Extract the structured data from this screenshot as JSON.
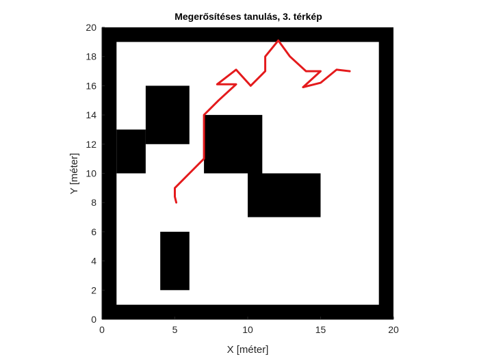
{
  "chart_data": {
    "type": "line",
    "title": "Megerősítéses tanulás, 3. térkép",
    "xlabel": "X [méter]",
    "ylabel": "Y [méter]",
    "xlim": [
      0,
      20
    ],
    "ylim": [
      0,
      20
    ],
    "xticks": [
      "0",
      "5",
      "10",
      "15",
      "20"
    ],
    "yticks": [
      "0",
      "2",
      "4",
      "6",
      "8",
      "10",
      "12",
      "14",
      "16",
      "18",
      "20"
    ],
    "grid": false,
    "colors": {
      "obstacle": "#000000",
      "free": "#ffffff",
      "path": "#e41a1c"
    },
    "obstacles": [
      {
        "x": [
          0,
          20
        ],
        "y": [
          0,
          1
        ]
      },
      {
        "x": [
          0,
          20
        ],
        "y": [
          19,
          20
        ]
      },
      {
        "x": [
          0,
          1
        ],
        "y": [
          0,
          20
        ]
      },
      {
        "x": [
          19,
          20
        ],
        "y": [
          0,
          20
        ]
      },
      {
        "x": [
          1,
          3
        ],
        "y": [
          10,
          13
        ]
      },
      {
        "x": [
          3,
          6
        ],
        "y": [
          12,
          16
        ]
      },
      {
        "x": [
          7,
          11
        ],
        "y": [
          10,
          14
        ]
      },
      {
        "x": [
          10,
          15
        ],
        "y": [
          7,
          10
        ]
      },
      {
        "x": [
          4,
          6
        ],
        "y": [
          2,
          6
        ]
      }
    ],
    "series": [
      {
        "points": [
          [
            5.1,
            8.0
          ],
          [
            5.0,
            8.4
          ],
          [
            5.0,
            9.0
          ],
          [
            6.0,
            10.0
          ],
          [
            7.0,
            11.0
          ],
          [
            7.0,
            14.0
          ],
          [
            8.0,
            15.0
          ],
          [
            9.2,
            16.1
          ],
          [
            7.9,
            16.1
          ],
          [
            9.2,
            17.1
          ],
          [
            10.2,
            16.0
          ],
          [
            11.2,
            17.0
          ],
          [
            11.2,
            18.0
          ],
          [
            12.1,
            19.1
          ],
          [
            12.9,
            18.0
          ],
          [
            14.0,
            17.0
          ],
          [
            15.0,
            17.0
          ],
          [
            13.8,
            15.9
          ],
          [
            15.0,
            16.2
          ],
          [
            16.1,
            17.1
          ],
          [
            17.0,
            17.0
          ]
        ]
      }
    ]
  }
}
